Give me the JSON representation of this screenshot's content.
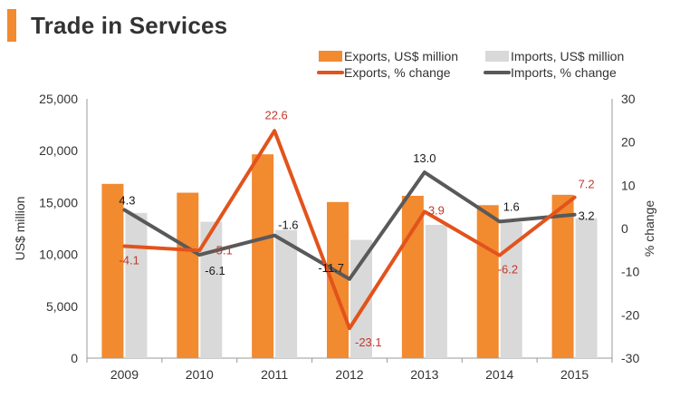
{
  "header": {
    "title": "Trade in Services"
  },
  "colors": {
    "title_marker": "#F28A30",
    "exports_bar": "#F28A30",
    "imports_bar": "#D9D9D9",
    "exports_line": "#E2531C",
    "imports_line": "#595959",
    "exports_label": "#C0392B",
    "imports_label": "#1a1a1a",
    "axis_text": "#333333",
    "axis_line": "#999999"
  },
  "chart_data": {
    "type": "bar",
    "title": "Trade in Services",
    "categories": [
      "2009",
      "2010",
      "2011",
      "2012",
      "2013",
      "2014",
      "2015"
    ],
    "series": [
      {
        "name": "Exports, US$ million",
        "kind": "bar",
        "axis": "left",
        "values": [
          16800,
          15950,
          19650,
          15050,
          15650,
          14750,
          15750
        ]
      },
      {
        "name": "Imports, US$ million",
        "kind": "bar",
        "axis": "left",
        "values": [
          14000,
          13150,
          12350,
          11400,
          12850,
          13100,
          13500
        ]
      },
      {
        "name": "Exports, % change",
        "kind": "line",
        "axis": "right",
        "values": [
          -4.1,
          -5.1,
          22.6,
          -23.1,
          3.9,
          -6.2,
          7.2
        ],
        "labels": [
          "-4.1",
          "-5.1",
          "22.6",
          "-23.1",
          "3.9",
          "-6.2",
          "7.2"
        ]
      },
      {
        "name": "Imports, % change",
        "kind": "line",
        "axis": "right",
        "values": [
          4.3,
          -6.1,
          -1.6,
          -11.7,
          13.0,
          1.6,
          3.2
        ],
        "labels": [
          "4.3",
          "-6.1",
          "-1.6",
          "-11.7",
          "13.0",
          "1.6",
          "3.2"
        ]
      }
    ],
    "ylabel": "US$ million",
    "y2label": "% change",
    "ylim": [
      0,
      25000
    ],
    "y2lim": [
      -30,
      30
    ],
    "yticks": [
      "0",
      "5,000",
      "10,000",
      "15,000",
      "20,000",
      "25,000"
    ],
    "y2ticks": [
      "-30",
      "-20",
      "-10",
      "0",
      "10",
      "20",
      "30"
    ],
    "legend_position": "top-right",
    "grid": false
  }
}
